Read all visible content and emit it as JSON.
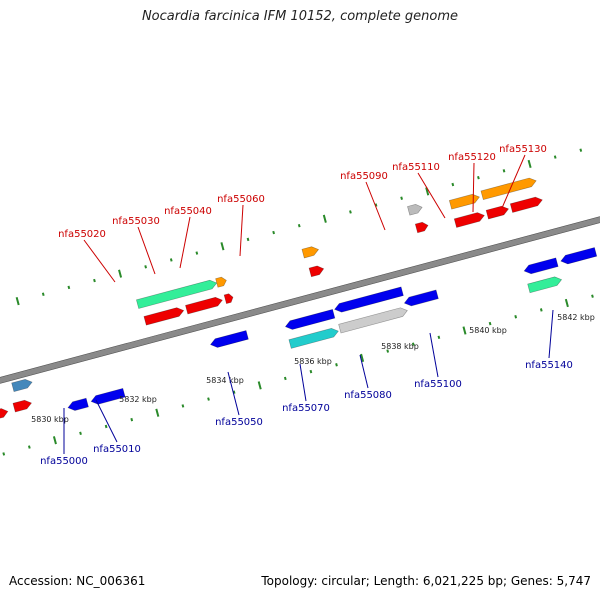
{
  "title": "Nocardia farcinica IFM 10152, complete genome",
  "footer": {
    "accession": "Accession: NC_006361",
    "summary": "Topology: circular; Length: 6,021,225 bp; Genes: 5,747"
  },
  "colors": {
    "backbone": "#8a8a8a",
    "tick": "#2a8a2a",
    "label_top": "#cc0000",
    "label_bottom": "#000099"
  },
  "scale_labels": [
    "5830 kbp",
    "5832 kbp",
    "5834 kbp",
    "5836 kbp",
    "5838 kbp",
    "5840 kbp",
    "5842 kbp"
  ],
  "gene_labels_top": [
    "nfa55020",
    "nfa55030",
    "nfa55040",
    "nfa55060",
    "nfa55090",
    "nfa55110",
    "nfa55120",
    "nfa55130"
  ],
  "gene_labels_bottom": [
    "nfa55000",
    "nfa55010",
    "nfa55050",
    "nfa55070",
    "nfa55080",
    "nfa55100",
    "nfa55140"
  ]
}
